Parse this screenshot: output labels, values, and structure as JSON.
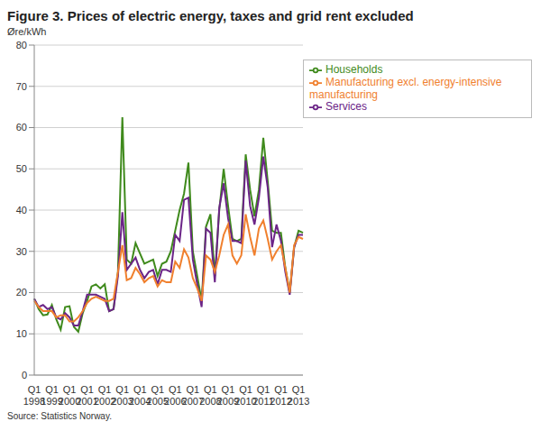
{
  "chart_data": {
    "type": "line",
    "title": "Figure 3. Prices of electric energy, taxes and grid rent excluded",
    "y_label": "Øre/kWh",
    "source": "Source: Statistics Norway.",
    "categories": [
      "Q1 1998",
      null,
      null,
      null,
      "Q1 1999",
      null,
      null,
      null,
      "Q1 2000",
      null,
      null,
      null,
      "Q1 2001",
      null,
      null,
      null,
      "Q1 2002",
      null,
      null,
      null,
      "Q1 2003",
      null,
      null,
      null,
      "Q1 2004",
      null,
      null,
      null,
      "Q1 2005",
      null,
      null,
      null,
      "Q1 2006",
      null,
      null,
      null,
      "Q1 2007",
      null,
      null,
      null,
      "Q1 2008",
      null,
      null,
      null,
      "Q1 2009",
      null,
      null,
      null,
      "Q1 2010",
      null,
      null,
      null,
      "Q1 2011",
      null,
      null,
      null,
      "Q1 2012",
      null,
      null,
      null,
      "Q1 2013",
      null
    ],
    "series": [
      {
        "name": "Households",
        "color": "#3f8a1c",
        "values": [
          18.5,
          16,
          14.5,
          14.7,
          17,
          13.5,
          11,
          16.5,
          16.7,
          11.7,
          10.5,
          15,
          18,
          21.5,
          22,
          21,
          22,
          15.5,
          16,
          25,
          62.5,
          28,
          27,
          32,
          29.5,
          27,
          27.5,
          28,
          24,
          27,
          27.5,
          30,
          35,
          40,
          44,
          51.5,
          30,
          24,
          18,
          36,
          39,
          24,
          40,
          50,
          41,
          33,
          32.5,
          33,
          53.5,
          45,
          38.5,
          45,
          57.5,
          47,
          35,
          34.5,
          34.5,
          26,
          20,
          31,
          35,
          34.5
        ]
      },
      {
        "name": "Services",
        "color": "#6b2487",
        "values": [
          18.5,
          16.5,
          17,
          16,
          16.5,
          14,
          13.5,
          15,
          14,
          12,
          12,
          15.5,
          19.5,
          19.5,
          19.5,
          19,
          18.5,
          15.5,
          16,
          24,
          39.5,
          25.5,
          27,
          28.5,
          25.5,
          23.5,
          25,
          25.5,
          22,
          25.5,
          25.5,
          25,
          34,
          32.5,
          42.5,
          43,
          28,
          22,
          16.5,
          35.5,
          34.5,
          22.5,
          40.5,
          46.5,
          38,
          32.5,
          32.5,
          32,
          52,
          41,
          36.5,
          43,
          53,
          45.5,
          31,
          36.5,
          32.5,
          25,
          19.5,
          31,
          34,
          34
        ]
      },
      {
        "name": "Manufacturing excl. energy-intensive manufacturing",
        "color": "#f0802e",
        "values": [
          18,
          16.5,
          15.5,
          15.5,
          15.5,
          14,
          14.5,
          14.5,
          13,
          13,
          14,
          15.5,
          17.5,
          18.5,
          19,
          18.5,
          18,
          18,
          18.5,
          25,
          31.5,
          23,
          23.5,
          26,
          24.5,
          22.5,
          23.5,
          24,
          21.5,
          23,
          22.5,
          22.5,
          27.5,
          26,
          30.5,
          28.5,
          23.5,
          21,
          18,
          29,
          28,
          25,
          29,
          34,
          36.5,
          29,
          27,
          29,
          39,
          33.5,
          29,
          35.5,
          37.5,
          33,
          28,
          30,
          31.5,
          26,
          20,
          31.5,
          33.5,
          33
        ]
      }
    ],
    "ylim": [
      0,
      80
    ],
    "yticks": [
      0,
      10,
      20,
      30,
      40,
      50,
      60,
      70,
      80
    ],
    "grid": true,
    "legend": "top-right"
  }
}
